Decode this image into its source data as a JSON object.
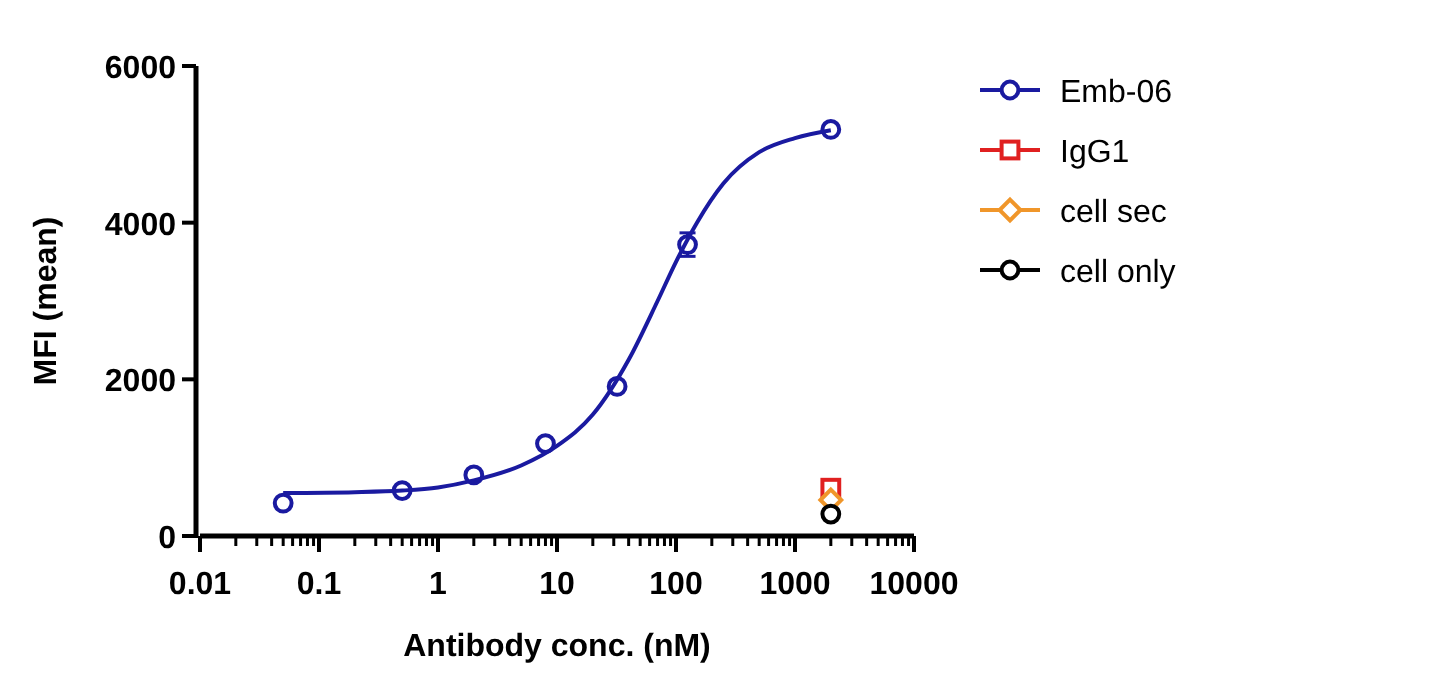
{
  "chart_data": {
    "type": "scatter",
    "xlabel": "Antibody conc. (nM)",
    "ylabel": "MFI (mean)",
    "log": "x",
    "xlim": [
      0.01,
      10000
    ],
    "ylim": [
      0,
      6000
    ],
    "xticks": [
      {
        "value": 0.01,
        "label": "0.01"
      },
      {
        "value": 0.02,
        "label": null
      },
      {
        "value": 0.03,
        "label": null
      },
      {
        "value": 0.04,
        "label": null
      },
      {
        "value": 0.05,
        "label": null
      },
      {
        "value": 0.06,
        "label": null
      },
      {
        "value": 0.07,
        "label": null
      },
      {
        "value": 0.08,
        "label": null
      },
      {
        "value": 0.09,
        "label": null
      },
      {
        "value": 0.1,
        "label": "0.1"
      },
      {
        "value": 0.2,
        "label": null
      },
      {
        "value": 0.3,
        "label": null
      },
      {
        "value": 0.4,
        "label": null
      },
      {
        "value": 0.5,
        "label": null
      },
      {
        "value": 0.6,
        "label": null
      },
      {
        "value": 0.7,
        "label": null
      },
      {
        "value": 0.8,
        "label": null
      },
      {
        "value": 0.9,
        "label": null
      },
      {
        "value": 1,
        "label": "1"
      },
      {
        "value": 2,
        "label": null
      },
      {
        "value": 3,
        "label": null
      },
      {
        "value": 4,
        "label": null
      },
      {
        "value": 5,
        "label": null
      },
      {
        "value": 6,
        "label": null
      },
      {
        "value": 7,
        "label": null
      },
      {
        "value": 8,
        "label": null
      },
      {
        "value": 9,
        "label": null
      },
      {
        "value": 10,
        "label": "10"
      },
      {
        "value": 20,
        "label": null
      },
      {
        "value": 30,
        "label": null
      },
      {
        "value": 40,
        "label": null
      },
      {
        "value": 50,
        "label": null
      },
      {
        "value": 60,
        "label": null
      },
      {
        "value": 70,
        "label": null
      },
      {
        "value": 80,
        "label": null
      },
      {
        "value": 90,
        "label": null
      },
      {
        "value": 100,
        "label": "100"
      },
      {
        "value": 200,
        "label": null
      },
      {
        "value": 300,
        "label": null
      },
      {
        "value": 400,
        "label": null
      },
      {
        "value": 500,
        "label": null
      },
      {
        "value": 600,
        "label": null
      },
      {
        "value": 700,
        "label": null
      },
      {
        "value": 800,
        "label": null
      },
      {
        "value": 900,
        "label": null
      },
      {
        "value": 1000,
        "label": "1000"
      },
      {
        "value": 2000,
        "label": null
      },
      {
        "value": 3000,
        "label": null
      },
      {
        "value": 4000,
        "label": null
      },
      {
        "value": 5000,
        "label": null
      },
      {
        "value": 6000,
        "label": null
      },
      {
        "value": 7000,
        "label": null
      },
      {
        "value": 8000,
        "label": null
      },
      {
        "value": 9000,
        "label": null
      },
      {
        "value": 10000,
        "label": "10000"
      }
    ],
    "yticks": [
      0,
      2000,
      4000,
      6000
    ],
    "grid": false,
    "legend": "right",
    "series": [
      {
        "name": "Emb-06",
        "marker": "circle",
        "color": "#1a1aa0",
        "x": [
          0.05,
          0.5,
          2,
          8,
          32,
          125,
          2000
        ],
        "values": [
          420,
          580,
          780,
          1180,
          1910,
          3720,
          5190
        ],
        "errors": [
          null,
          null,
          null,
          null,
          null,
          150,
          null
        ]
      },
      {
        "type": "line",
        "marker": "none",
        "color": "#1a1aa0",
        "x": [
          0.05,
          0.2,
          0.5,
          1,
          2,
          5,
          10,
          20,
          40,
          70,
          100,
          150,
          250,
          500,
          1000,
          2000
        ],
        "values": [
          550,
          560,
          580,
          620,
          710,
          900,
          1150,
          1550,
          2250,
          3000,
          3500,
          4000,
          4500,
          4900,
          5080,
          5180
        ]
      },
      {
        "name": "IgG1",
        "marker": "square",
        "color": "#e02020",
        "x": [
          2000
        ],
        "values": [
          610
        ]
      },
      {
        "name": "cell sec",
        "marker": "diamond",
        "color": "#f0962a",
        "x": [
          2000
        ],
        "values": [
          460
        ]
      },
      {
        "name": "cell only",
        "marker": "circle",
        "color": "#000000",
        "x": [
          2000
        ],
        "values": [
          280
        ]
      }
    ]
  }
}
